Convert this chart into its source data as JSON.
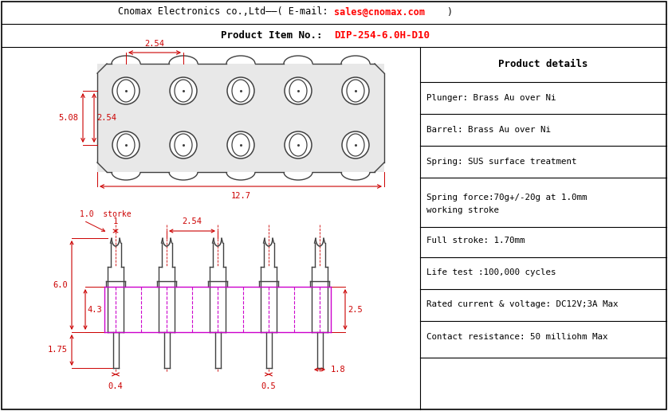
{
  "bg_color": "#ffffff",
  "border_color": "#000000",
  "dim_color": "#cc0000",
  "draw_color": "#404040",
  "magenta_color": "#cc00cc",
  "title1_black": "Cnomax Electronics co.,Ltd——( E-mail: ",
  "title1_red": "sales@cnomax.com",
  "title1_end": ")",
  "title2_black": "Product Item No.:  ",
  "title2_red": "DIP-254-6.0H-D10",
  "product_details_title": "Product details",
  "product_details": [
    "Plunger: Brass Au over Ni",
    "Barrel: Brass Au over Ni",
    "Spring: SUS surface treatment",
    "Spring force:70g+/-20g at 1.0mm\nworking stroke",
    "Full stroke: 1.70mm",
    "Life test :100,000 cycles",
    "Rated current & voltage: DC12V;3A Max",
    "Contact resistance: 50 milliohm Max"
  ]
}
